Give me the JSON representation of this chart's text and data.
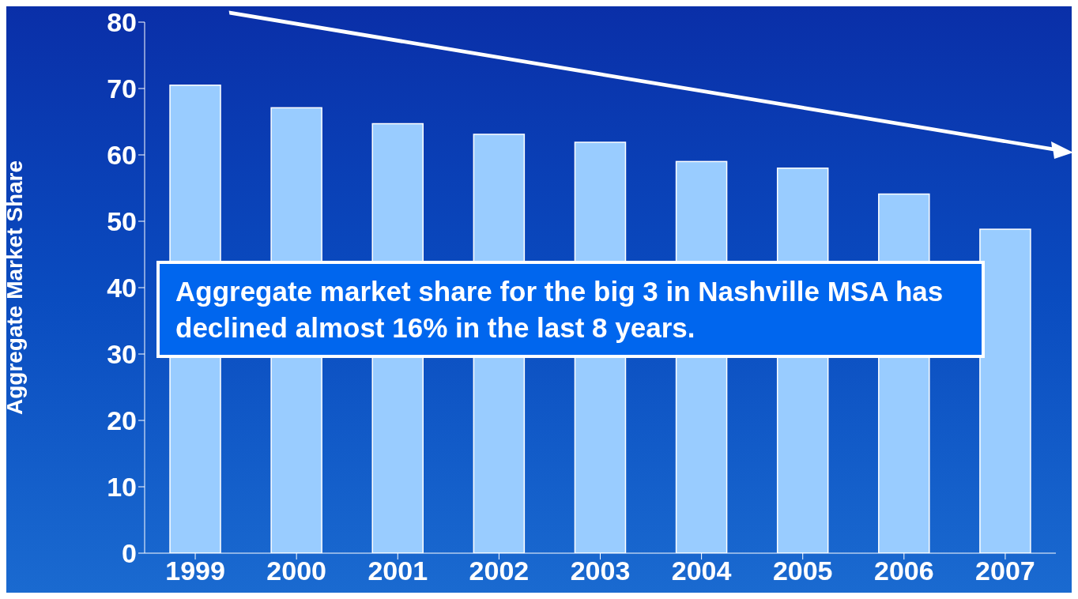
{
  "chart_data": {
    "type": "bar",
    "categories": [
      "1999",
      "2000",
      "2001",
      "2002",
      "2003",
      "2004",
      "2005",
      "2006",
      "2007"
    ],
    "values": [
      70.5,
      67.1,
      64.7,
      63.1,
      61.9,
      59.0,
      58.0,
      54.1,
      48.8
    ],
    "color": "#99ccff",
    "ylabel": "Aggregate Market Share",
    "ylim": [
      0,
      80
    ],
    "yticks": [
      0,
      10,
      20,
      30,
      40,
      50,
      60,
      70,
      80
    ],
    "grid": false,
    "annotations": [
      "Aggregate market share for the big 3 in Nashville MSA has declined almost 16% in the last 8 years."
    ]
  }
}
